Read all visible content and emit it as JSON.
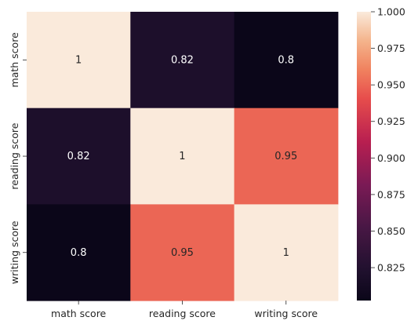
{
  "chart_data": {
    "type": "heatmap",
    "title": "",
    "xlabel": "",
    "ylabel": "",
    "x_categories": [
      "math score",
      "reading score",
      "writing score"
    ],
    "y_categories": [
      "math score",
      "reading score",
      "writing score"
    ],
    "values": [
      [
        1,
        0.82,
        0.8
      ],
      [
        0.82,
        1,
        0.95
      ],
      [
        0.8,
        0.95,
        1
      ]
    ],
    "cell_labels": [
      [
        "1",
        "0.82",
        "0.8"
      ],
      [
        "0.82",
        "1",
        "0.95"
      ],
      [
        "0.8",
        "0.95",
        "1"
      ]
    ],
    "colorbar": {
      "range": [
        0.8025,
        1.0
      ],
      "ticks": [
        0.825,
        0.85,
        0.875,
        0.9,
        0.925,
        0.95,
        0.975,
        1.0
      ],
      "tick_labels": [
        "0.825",
        "0.850",
        "0.875",
        "0.900",
        "0.925",
        "0.950",
        "0.975",
        "1.000"
      ],
      "colormap": "rocket"
    }
  }
}
